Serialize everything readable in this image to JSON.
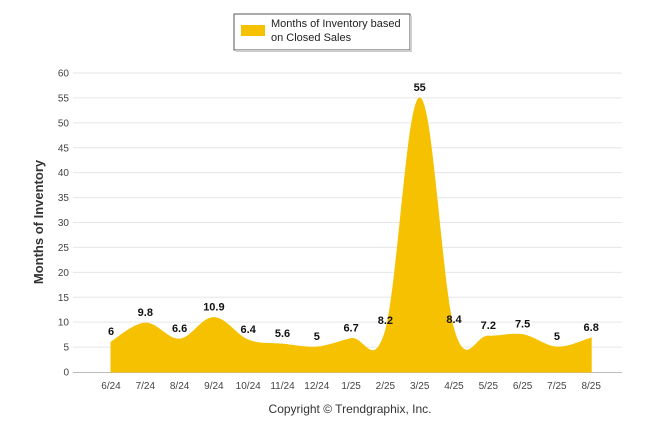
{
  "chart_data": {
    "type": "area",
    "categories": [
      "6/24",
      "7/24",
      "8/24",
      "9/24",
      "10/24",
      "11/24",
      "12/24",
      "1/25",
      "2/25",
      "3/25",
      "4/25",
      "5/25",
      "6/25",
      "7/25",
      "8/25"
    ],
    "series": [
      {
        "name": "Months of Inventory based on Closed Sales",
        "values": [
          6,
          9.8,
          6.6,
          10.9,
          6.4,
          5.6,
          5,
          6.7,
          8.2,
          55,
          8.4,
          7.2,
          7.5,
          5,
          6.8
        ],
        "color": "#F5C100"
      }
    ],
    "data_labels": [
      "6",
      "9.8",
      "6.6",
      "10.9",
      "6.4",
      "5.6",
      "5",
      "6.7",
      "8.2",
      "55",
      "8.4",
      "7.2",
      "7.5",
      "5",
      "6.8"
    ],
    "ylabel": "Months of Inventory",
    "xlabel": "",
    "ylim": [
      0,
      60
    ],
    "yticks": [
      "0",
      "5",
      "10",
      "15",
      "20",
      "25",
      "30",
      "35",
      "40",
      "45",
      "50",
      "55",
      "60"
    ],
    "grid": true,
    "legend_position": "top-center",
    "legend_lines": [
      "Months of Inventory based",
      "on Closed Sales"
    ],
    "credit": "Copyright © Trendgraphix, Inc.",
    "gridline_color": "#e6e6e6"
  }
}
